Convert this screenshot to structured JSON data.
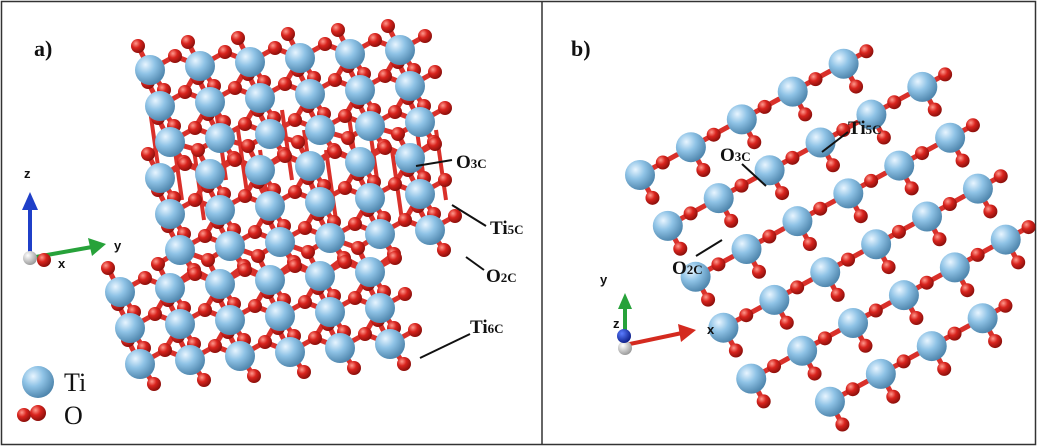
{
  "panels": [
    {
      "label": "a)",
      "axes": {
        "vertical": "z",
        "horizontal": "y",
        "out_of_plane": "x"
      },
      "site_labels": [
        {
          "main": "O",
          "sub": "3C"
        },
        {
          "main": "Ti",
          "sub": "5C"
        },
        {
          "main": "O",
          "sub": "2C"
        },
        {
          "main": "Ti",
          "sub": "6C"
        }
      ],
      "legend": [
        {
          "name": "Ti",
          "color": "#8fc3e6"
        },
        {
          "name": "O",
          "color": "#d9241e"
        }
      ]
    },
    {
      "label": "b)",
      "axes": {
        "vertical": "y",
        "horizontal": "x",
        "out_of_plane": "z"
      },
      "site_labels": [
        {
          "main": "Ti",
          "sub": "5C"
        },
        {
          "main": "O",
          "sub": "3C"
        },
        {
          "main": "O",
          "sub": "2C"
        }
      ]
    }
  ],
  "colors": {
    "titanium": "#8fc3e6",
    "oxygen": "#d9241e",
    "bond_ti": "#9fcbe8",
    "bond_o": "#d9302a",
    "axis_z": "#1f3fc8",
    "axis_y": "#27a23a",
    "axis_x": "#d42a1f",
    "frame": "#333333"
  },
  "icons": [
    "ti-atom-icon",
    "o-atom-icon",
    "axis-triad-icon"
  ]
}
